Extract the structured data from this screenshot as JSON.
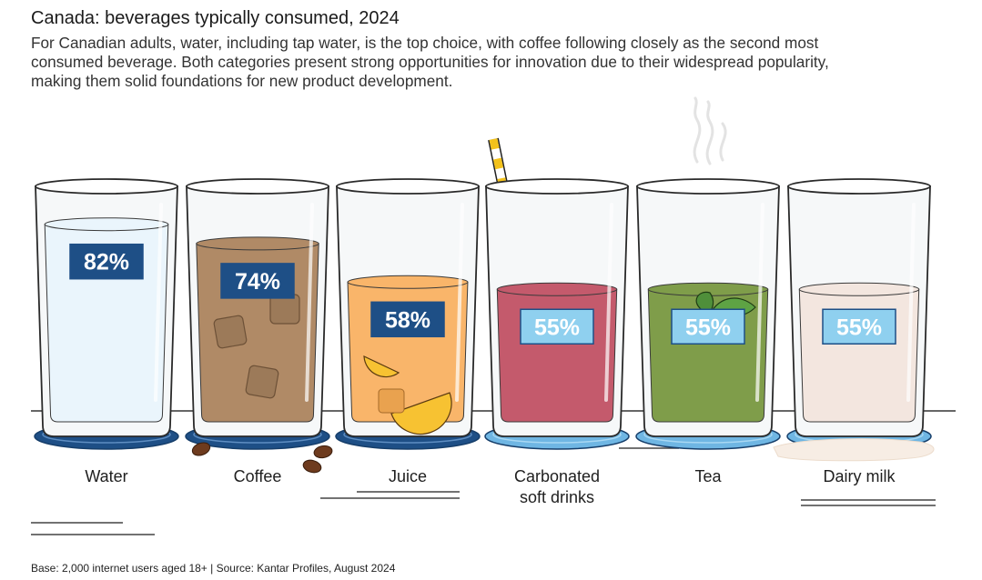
{
  "title": "Canada: beverages typically consumed, 2024",
  "subtitle": "For Canadian adults, water, including tap water, is the top choice, with coffee following closely as the second most consumed beverage. Both categories present strong opportunities for innovation due to their widespread popularity, making them solid foundations for new product development.",
  "footer": "Base: 2,000 internet users aged 18+ | Source: Kantar Profiles, August 2024",
  "chart_data": {
    "type": "bar",
    "categories": [
      "Water",
      "Coffee",
      "Juice",
      "Carbonated soft drinks",
      "Tea",
      "Dairy milk"
    ],
    "category_lines": [
      [
        "Water"
      ],
      [
        "Coffee"
      ],
      [
        "Juice"
      ],
      [
        "Carbonated",
        "soft drinks"
      ],
      [
        "Tea"
      ],
      [
        "Dairy milk"
      ]
    ],
    "values": [
      82,
      74,
      58,
      55,
      55,
      55
    ],
    "value_labels": [
      "82%",
      "74%",
      "58%",
      "55%",
      "55%",
      "55%"
    ],
    "unit": "%",
    "ylim": [
      0,
      100
    ],
    "colors": {
      "Water": "#eaf5fc",
      "Coffee": "#b08a66",
      "Juice": "#f9b56a",
      "Carbonated soft drinks": "#c45a6c",
      "Tea": "#7f9d4a",
      "Dairy milk": "#f3e6df"
    },
    "label_box_dark": "#1e4f86",
    "label_box_light": "#8fd0ef",
    "coaster_dark": "#1e4f86",
    "coaster_light": "#6fb6e3"
  }
}
